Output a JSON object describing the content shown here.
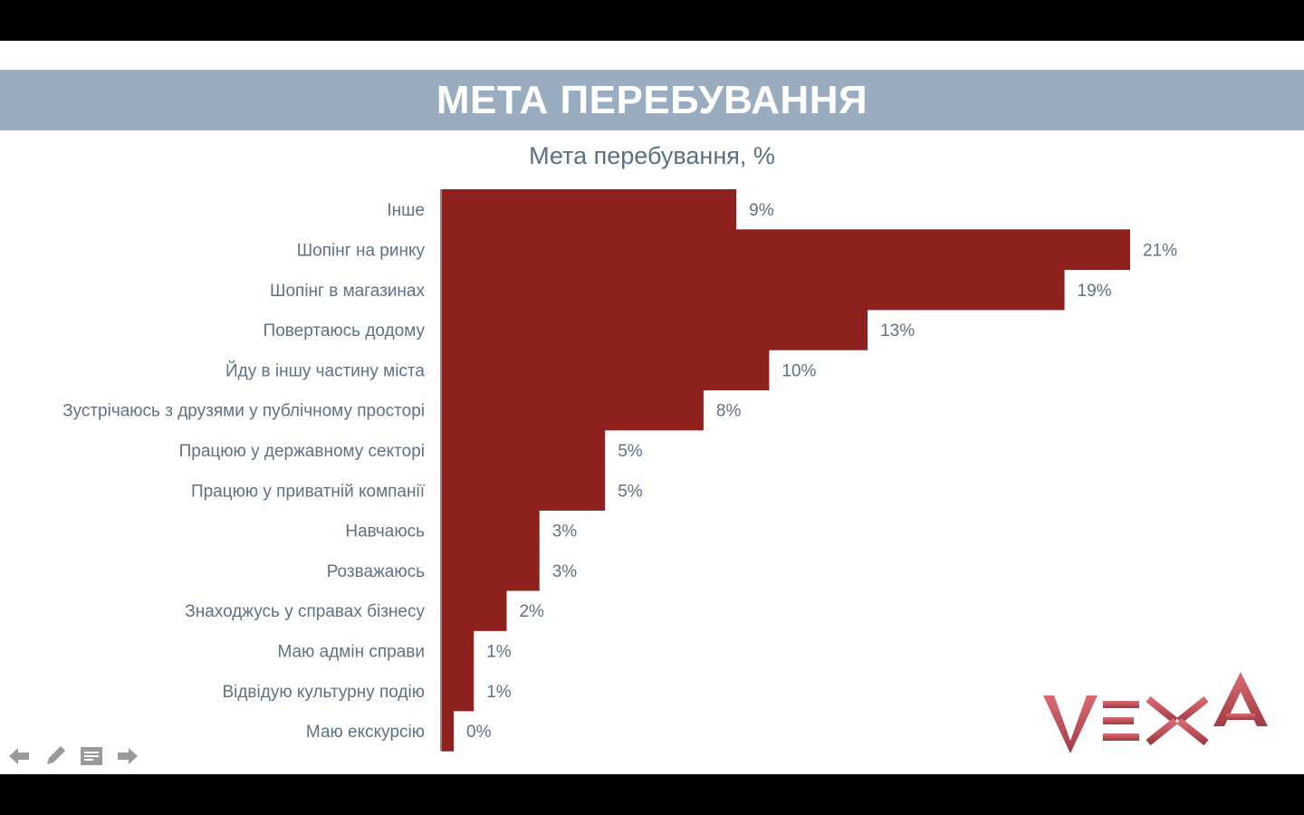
{
  "slide": {
    "heading": "МЕТА ПЕРЕБУВАННЯ"
  },
  "chart_data": {
    "type": "bar",
    "orientation": "horizontal",
    "title": "Мета перебування, %",
    "categories": [
      "Інше",
      "Шопінг на ринку",
      "Шопінг в магазинах",
      "Повертаюсь додому",
      "Йду в іншу частину міста",
      "Зустрічаюсь з друзями у публічному просторі",
      "Працюю у державному секторі",
      "Працюю у приватній компанії",
      "Навчаюсь",
      "Розважаюсь",
      "Знаходжусь у справах бізнесу",
      "Маю адмін справи",
      "Відвідую культурну подію",
      "Маю екскурсію"
    ],
    "values": [
      9,
      21,
      19,
      13,
      10,
      8,
      5,
      5,
      3,
      3,
      2,
      1,
      1,
      0
    ],
    "value_labels": [
      "9%",
      "21%",
      "19%",
      "13%",
      "10%",
      "8%",
      "5%",
      "5%",
      "3%",
      "3%",
      "2%",
      "1%",
      "1%",
      "0%"
    ],
    "xlabel": "",
    "ylabel": "",
    "xlim": [
      0,
      21
    ],
    "grid": false,
    "legend": "none",
    "bar_color": "#8e201d"
  },
  "logo": {
    "text": "VEЖA",
    "color": "#c0525c"
  },
  "nav_icons": [
    "arrow-left-icon",
    "pencil-icon",
    "notes-icon",
    "arrow-right-icon"
  ]
}
